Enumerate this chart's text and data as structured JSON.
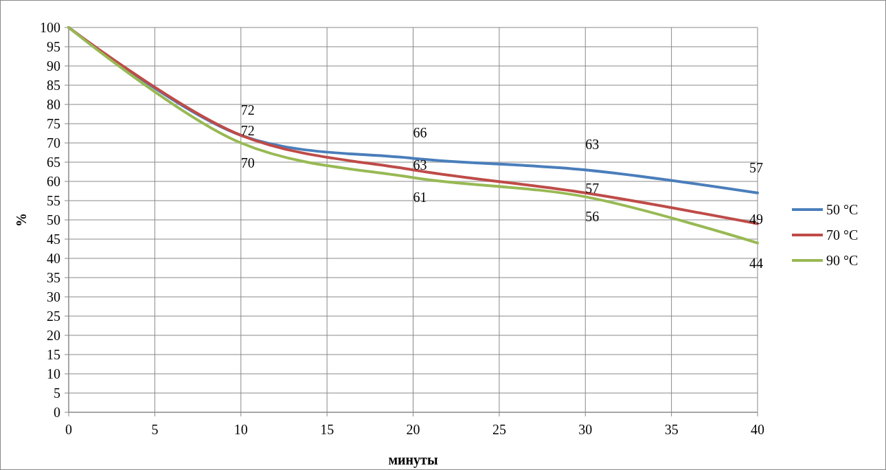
{
  "chart_data": {
    "type": "line",
    "xlabel": "минуты",
    "ylabel": "%",
    "x": [
      0,
      10,
      20,
      30,
      40
    ],
    "series": [
      {
        "name": "50 °C",
        "color": "#4a7ebb",
        "values": [
          100,
          72,
          66,
          63,
          57
        ],
        "value_labels": [
          null,
          "72",
          "66",
          "63",
          "57"
        ]
      },
      {
        "name": "70 °C",
        "color": "#be4b48",
        "values": [
          100,
          72,
          63,
          57,
          49
        ],
        "value_labels": [
          null,
          "72",
          "63",
          "57",
          "49"
        ]
      },
      {
        "name": "90 °C",
        "color": "#98b954",
        "values": [
          100,
          70,
          61,
          56,
          44
        ],
        "value_labels": [
          null,
          "70",
          "61",
          "56",
          "44"
        ]
      }
    ],
    "xlim": [
      0,
      40
    ],
    "xticks": [
      0,
      5,
      10,
      15,
      20,
      25,
      30,
      35,
      40
    ],
    "ylim": [
      0,
      100
    ],
    "yticks": [
      0,
      5,
      10,
      15,
      20,
      25,
      30,
      35,
      40,
      45,
      50,
      55,
      60,
      65,
      70,
      75,
      80,
      85,
      90,
      95,
      100
    ],
    "grid": true,
    "legend": "right",
    "marker": "none",
    "line_style": "solid"
  }
}
